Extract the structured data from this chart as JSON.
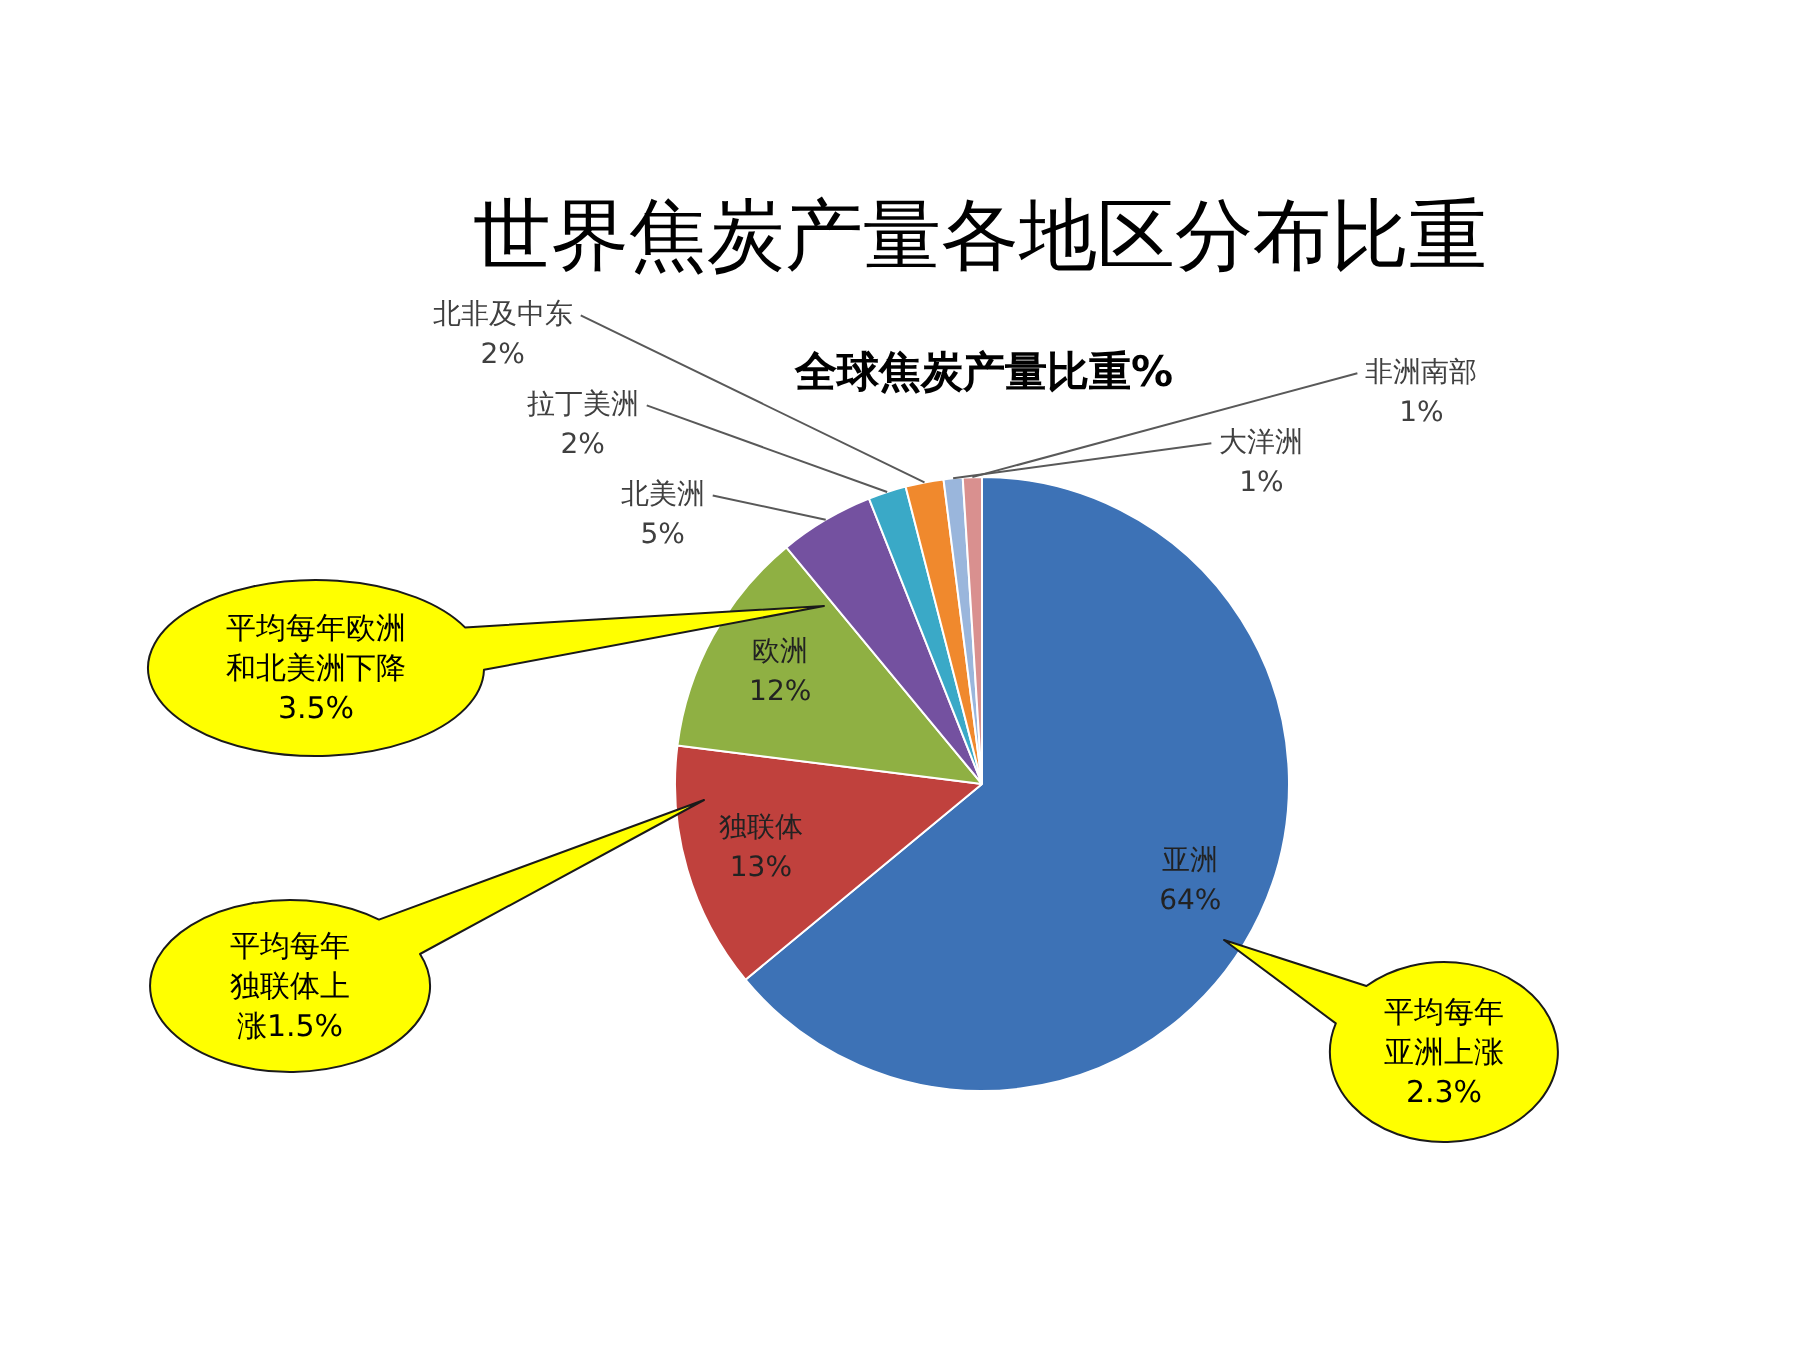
{
  "chart_data": {
    "type": "pie",
    "title": "世界焦炭产量各地区分布比重",
    "subtitle": "全球焦炭产量比重%",
    "categories": [
      "亚洲",
      "独联体",
      "欧洲",
      "北美洲",
      "拉丁美洲",
      "北非及中东",
      "大洋洲",
      "非洲南部"
    ],
    "values": [
      64,
      13,
      12,
      5,
      2,
      2,
      1,
      1
    ],
    "colors": [
      "#3d72b6",
      "#c0413d",
      "#8fb043",
      "#7451a0",
      "#3aa9c7",
      "#f0892d",
      "#9ab6dc",
      "#d9908f"
    ],
    "value_labels": [
      "64%",
      "13%",
      "12%",
      "5%",
      "2%",
      "2%",
      "1%",
      "1%"
    ],
    "annotations": [
      "平均每年欧洲和北美洲下降3.5%",
      "平均每年独联体上涨1.5%",
      "平均每年亚洲上涨2.3%"
    ],
    "legend": false
  }
}
